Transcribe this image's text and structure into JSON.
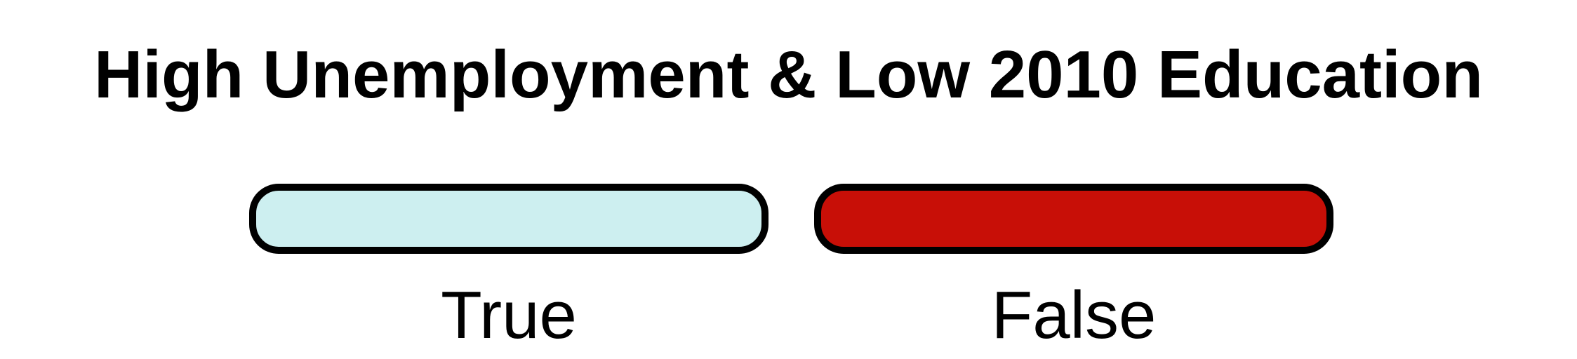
{
  "title": "High Unemployment & Low 2010 Education",
  "legend": {
    "items": [
      {
        "label": "True",
        "color": "#cdeff0"
      },
      {
        "label": "False",
        "color": "#c80f07"
      }
    ]
  }
}
